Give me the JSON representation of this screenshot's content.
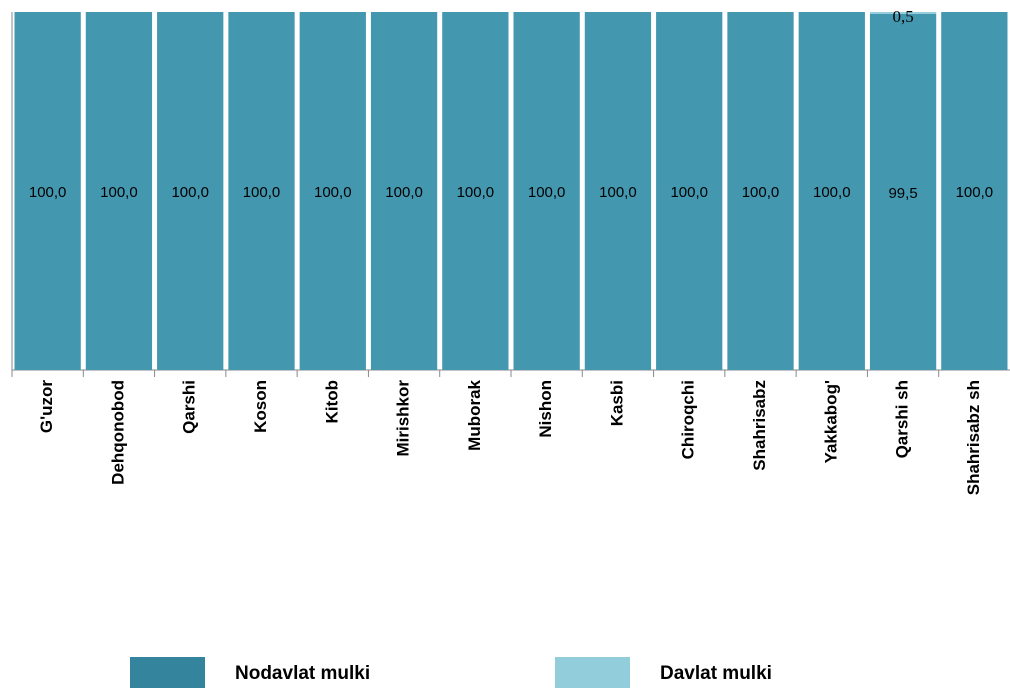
{
  "chart_data": {
    "type": "stacked_bar",
    "categories": [
      "G'uzor",
      "Dehqonobod",
      "Qarshi",
      "Koson",
      "Kitob",
      "Mirishkor",
      "Muborak",
      "Nishon",
      "Kasbi",
      "Chiroqchi",
      "Shahrisabz",
      "Yakkabog'",
      "Qarshi sh",
      "Shahrisabz sh"
    ],
    "series": [
      {
        "name": "Nodavlat mulki",
        "color": "#4398b0",
        "legend_color": "#35849e",
        "values": [
          100,
          100,
          100,
          100,
          100,
          100,
          100,
          100,
          100,
          100,
          100,
          100,
          99.5,
          100
        ],
        "value_labels": [
          "100,0",
          "100,0",
          "100,0",
          "100,0",
          "100,0",
          "100,0",
          "100,0",
          "100,0",
          "100,0",
          "100,0",
          "100,0",
          "100,0",
          "99,5",
          "100,0"
        ]
      },
      {
        "name": "Davlat mulki",
        "color": "#92cddc",
        "values": [
          0,
          0,
          0,
          0,
          0,
          0,
          0,
          0,
          0,
          0,
          0,
          0,
          0.5,
          0
        ],
        "value_labels": [
          null,
          null,
          null,
          null,
          null,
          null,
          null,
          null,
          null,
          null,
          null,
          null,
          "0,5",
          null
        ]
      }
    ],
    "ylim": [
      0,
      100
    ],
    "legend": "bottom"
  }
}
